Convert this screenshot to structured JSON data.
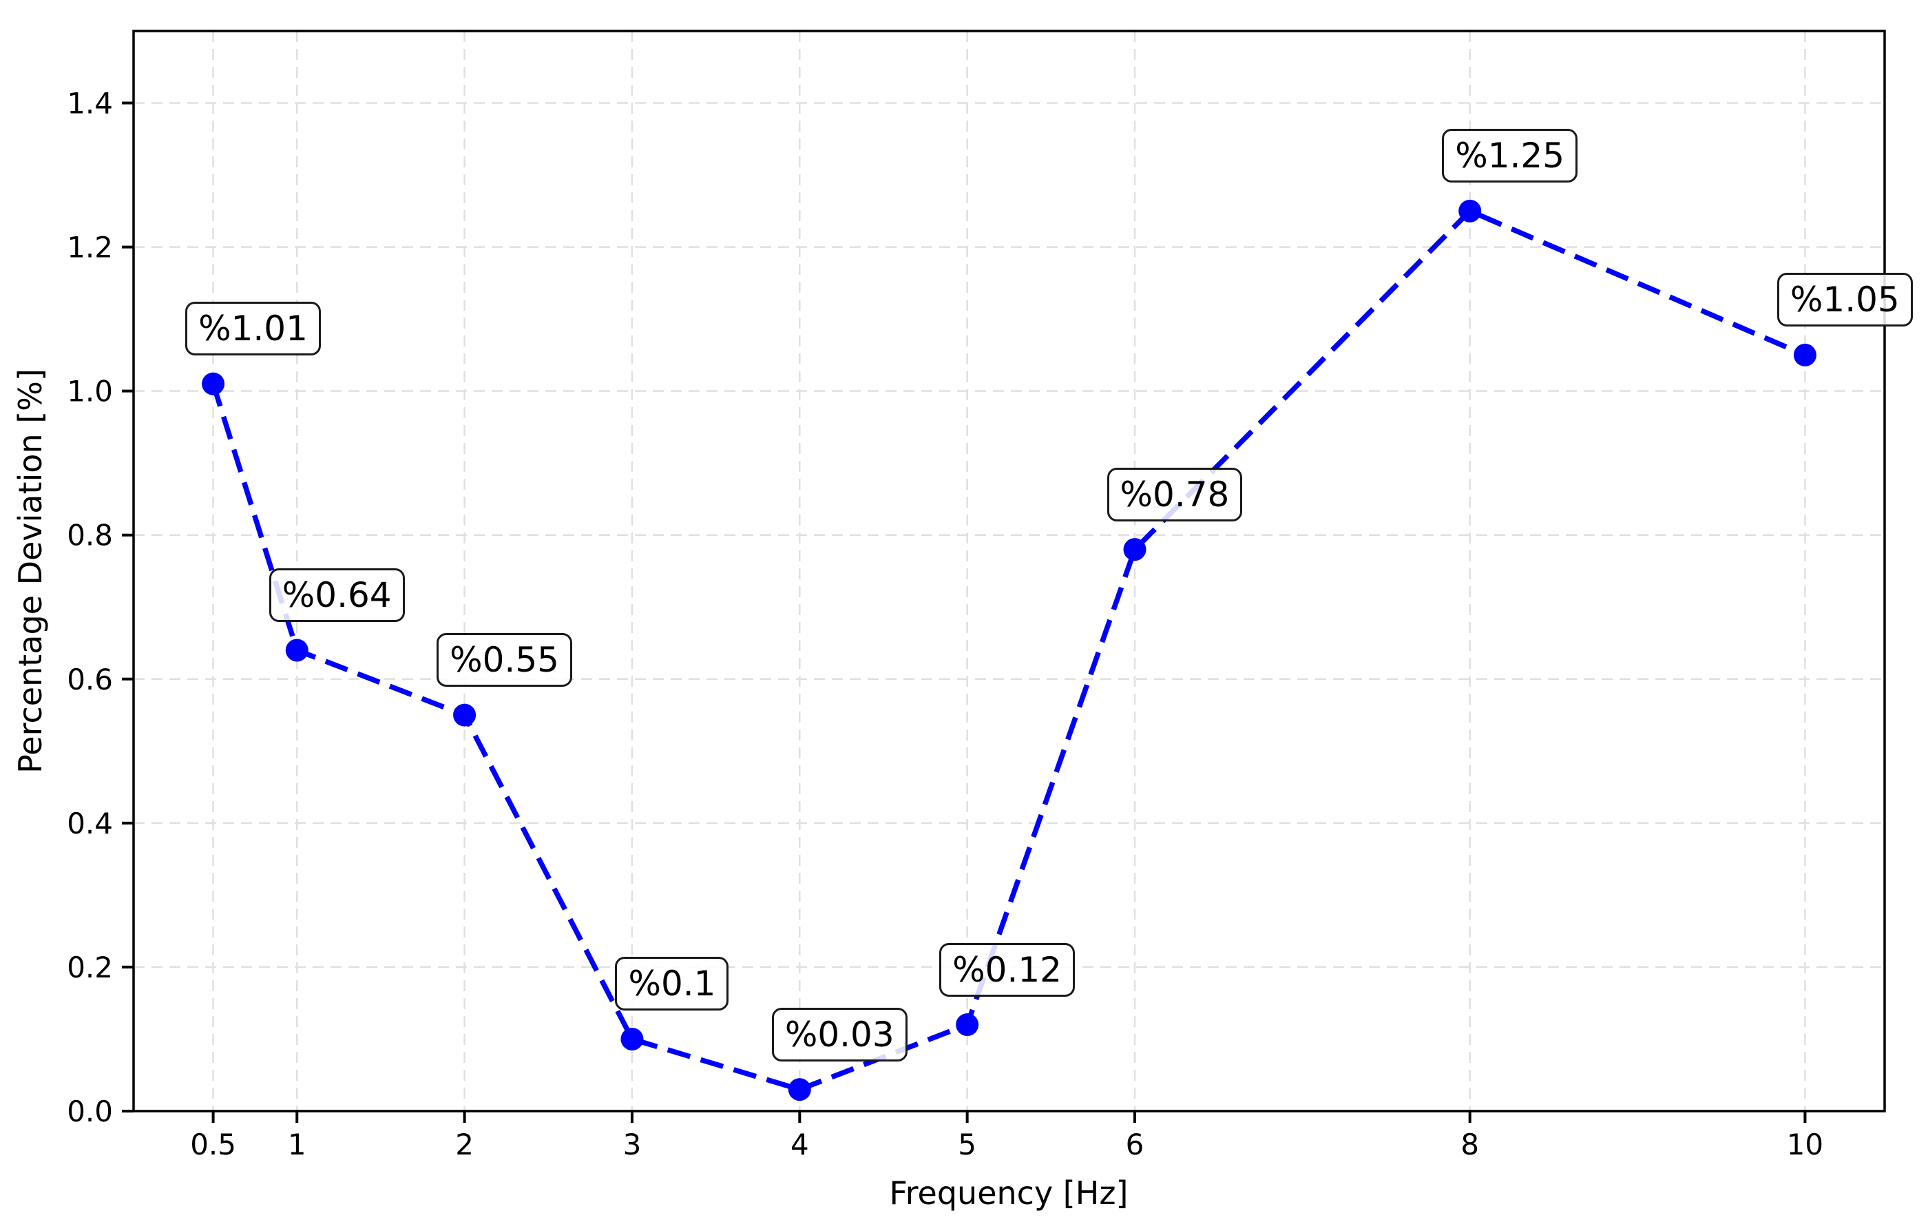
{
  "figure": {
    "background": "#ffffff"
  },
  "chart_data": {
    "type": "line",
    "title": "",
    "xlabel": "Frequency [Hz]",
    "ylabel": "Percentage Deviation [%]",
    "x": [
      0.5,
      1,
      2,
      3,
      4,
      5,
      6,
      8,
      10
    ],
    "y": [
      1.01,
      0.64,
      0.55,
      0.1,
      0.03,
      0.12,
      0.78,
      1.25,
      1.05
    ],
    "point_labels": [
      "%1.01",
      "%0.64",
      "%0.55",
      "%0.1",
      "%0.03",
      "%0.12",
      "%0.78",
      "%1.25",
      "%1.05"
    ],
    "xtick_values": [
      0.5,
      1,
      2,
      3,
      4,
      5,
      6,
      8,
      10
    ],
    "xtick_labels": [
      "0.5",
      "1",
      "2",
      "3",
      "4",
      "5",
      "6",
      "8",
      "10"
    ],
    "ytick_values": [
      0,
      0.2,
      0.4,
      0.6,
      0.8,
      1,
      1.2,
      1.4
    ],
    "ytick_labels": [
      "0.0",
      "0.2",
      "0.4",
      "0.6",
      "0.8",
      "1.0",
      "1.2",
      "1.4"
    ],
    "xlim": [
      0.025,
      10.475
    ],
    "ylim": [
      0,
      1.5
    ],
    "grid": true,
    "legend": null,
    "line_style": "dashed",
    "marker": "circle",
    "colors": {
      "line": "#0000ff",
      "marker": "#0000ff",
      "grid": "#e0e0e0",
      "spine": "#000000",
      "tick": "#000000",
      "annotation_border": "#1a1a1a",
      "annotation_background": "rgba(255,255,255,0.85)",
      "text": "#000000"
    }
  }
}
